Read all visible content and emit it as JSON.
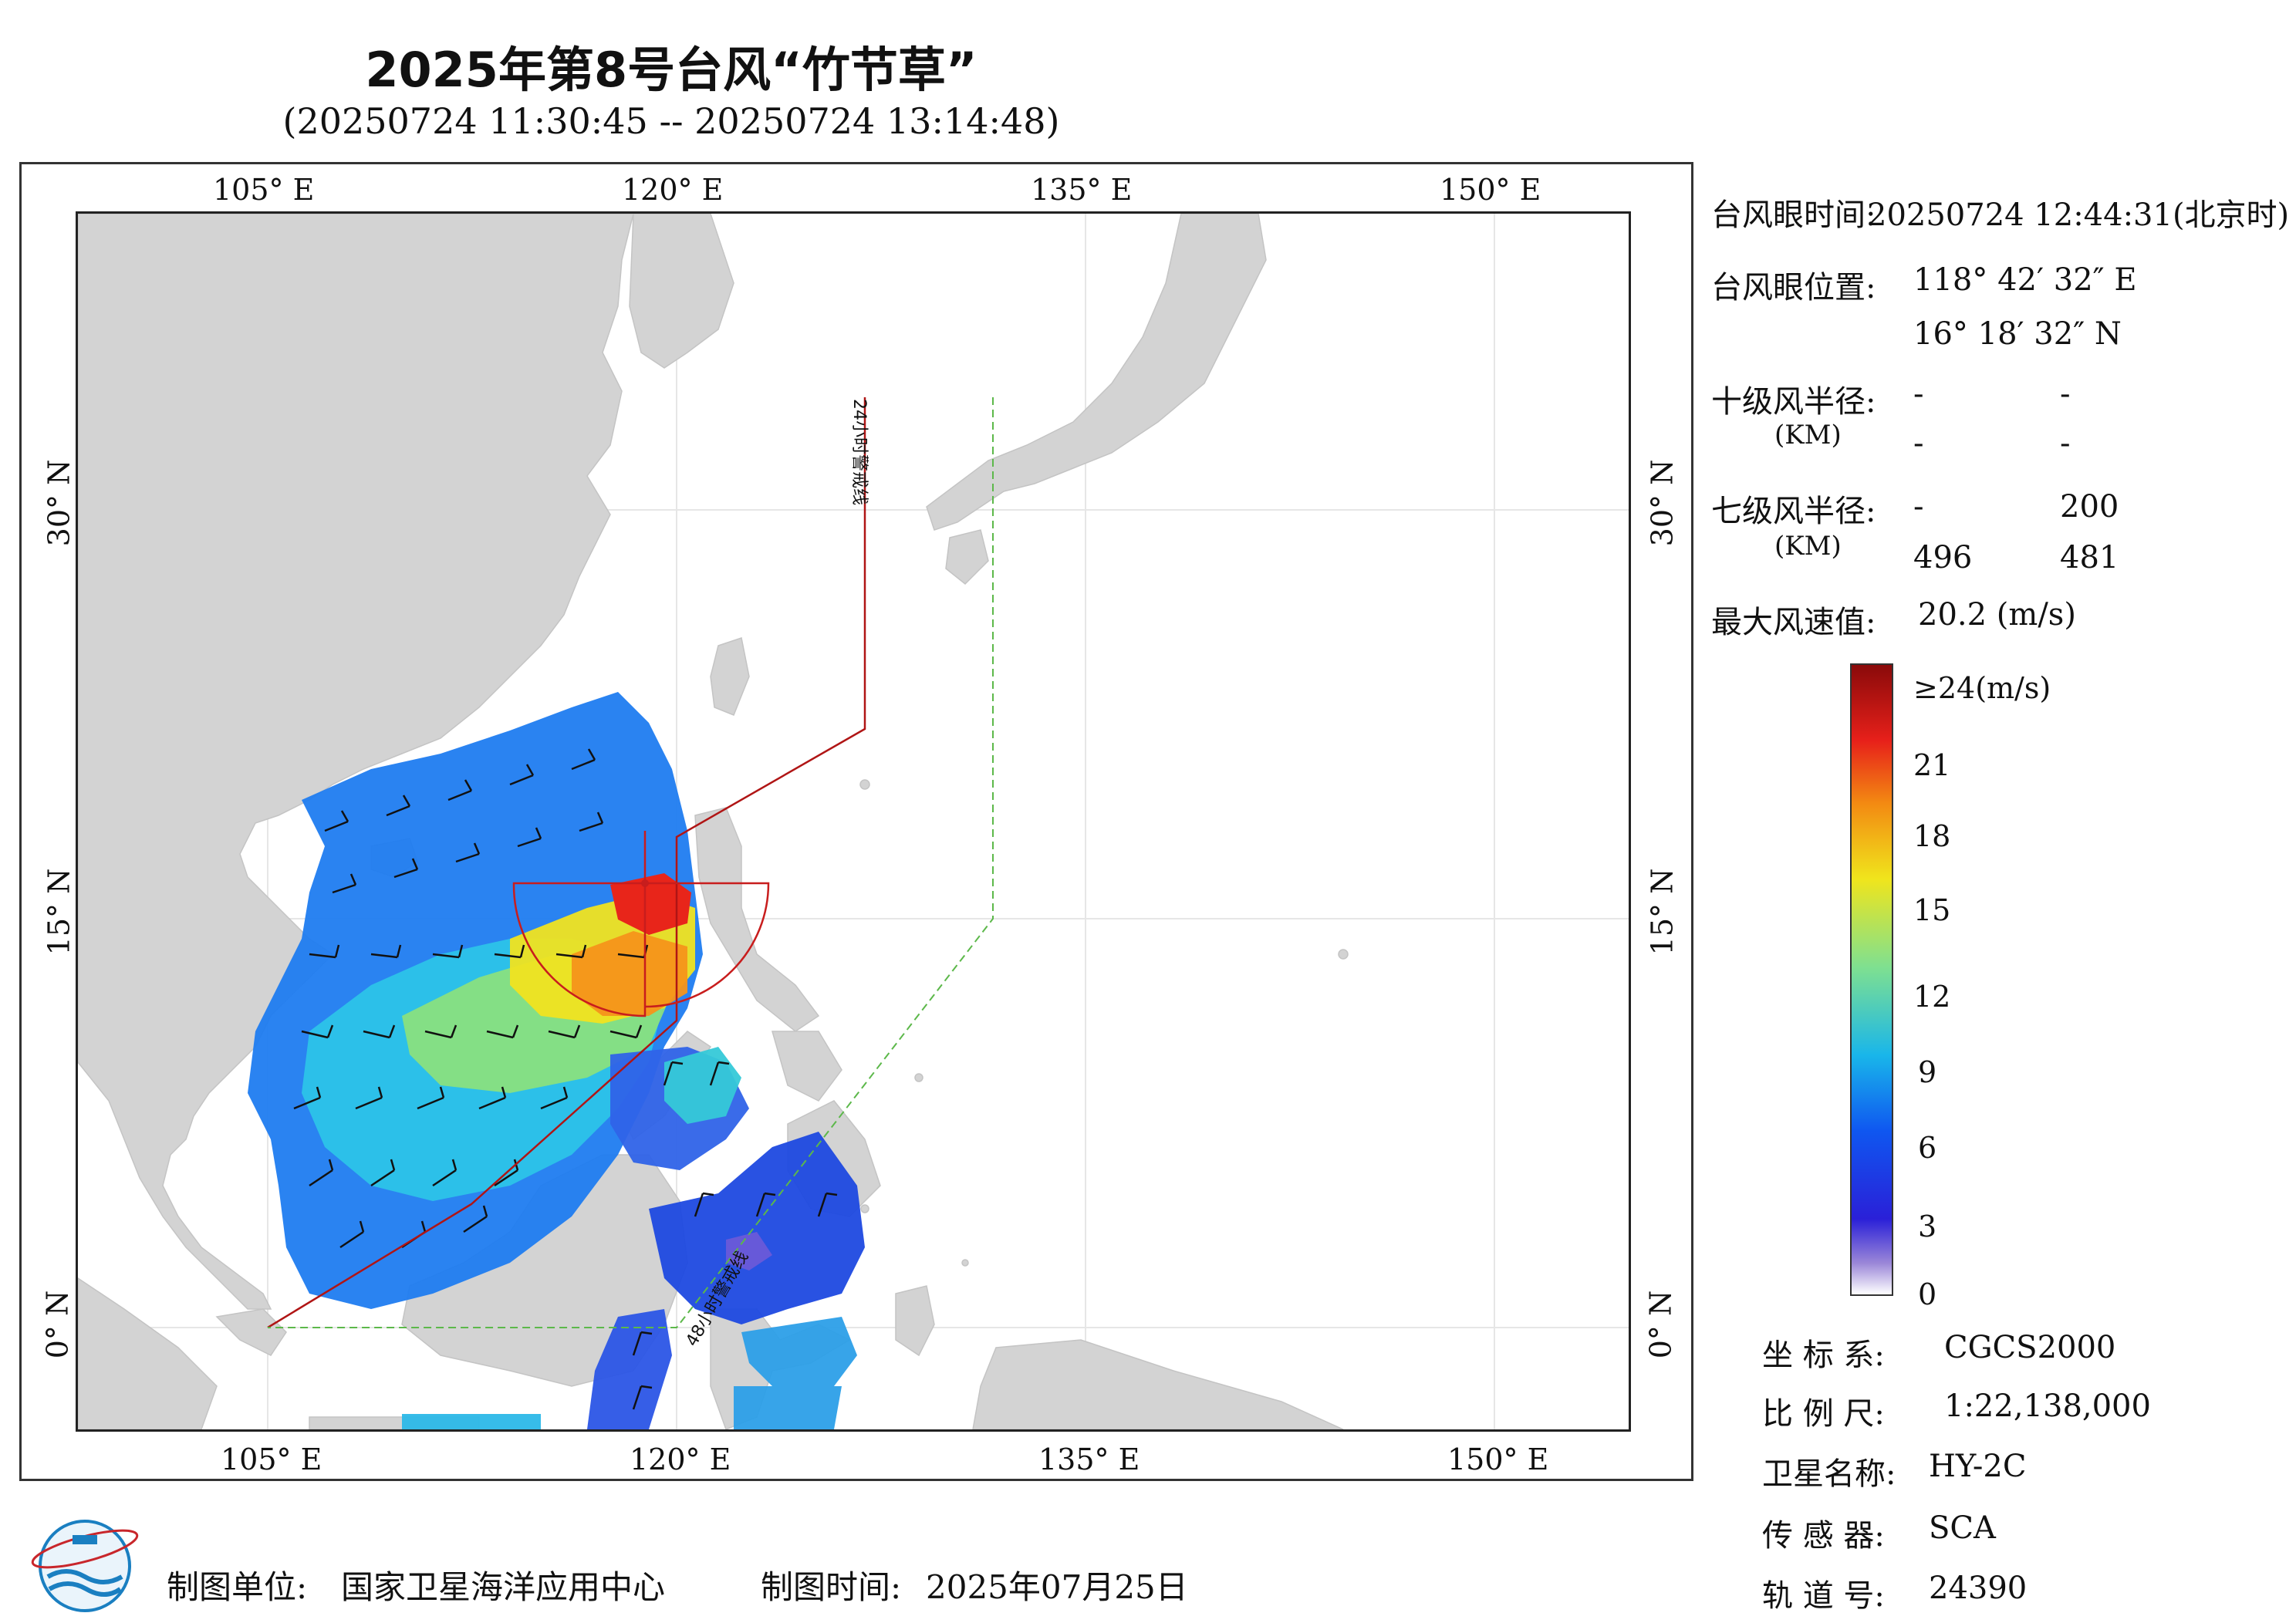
{
  "title": "2025年第8号台风“竹节草”",
  "subtitle": "(20250724 11:30:45 -- 20250724 13:14:48)",
  "axes": {
    "lon_ticks": [
      "105° E",
      "120° E",
      "135° E",
      "150° E"
    ],
    "lat_ticks": [
      "30° N",
      "15° N",
      "0° N"
    ],
    "warning_24h": "24小时警戒线",
    "warning_48h": "48小时警戒线"
  },
  "info": {
    "eye_time_label": "台风眼时间:",
    "eye_time_value": "20250724 12:44:31(北京时)",
    "eye_pos_label": "台风眼位置:",
    "eye_lon": "118° 42′ 32″ E",
    "eye_lat": "16° 18′ 32″ N",
    "r10_label": "十级风半径:",
    "r10_unit": "(KM)",
    "r10_values": [
      "-",
      "-",
      "-",
      "-"
    ],
    "r7_label": "七级风半径:",
    "r7_unit": "(KM)",
    "r7_values": [
      "-",
      "200",
      "496",
      "481"
    ],
    "max_wind_label": "最大风速值:",
    "max_wind_value": "20.2 (m/s)"
  },
  "colorbar": {
    "top_label": "≥24(m/s)",
    "labels": [
      "21",
      "18",
      "15",
      "12",
      "9",
      "6",
      "3",
      "0"
    ],
    "colors": [
      "#ffffff",
      "#9a86d8",
      "#2a20d8",
      "#0f57f0",
      "#19b6ea",
      "#7fe090",
      "#f0e51c",
      "#f38a12",
      "#e7201a",
      "#8a0a0a"
    ]
  },
  "meta": {
    "crs_label": "坐 标 系:",
    "crs_value": "CGCS2000",
    "scale_label": "比 例 尺:",
    "scale_value": "1:22,138,000",
    "sat_label": "卫星名称:",
    "sat_value": "HY-2C",
    "sensor_label": "传 感 器:",
    "sensor_value": "SCA",
    "orbit_label": "轨 道 号:",
    "orbit_value": "24390"
  },
  "footer": {
    "maker_label": "制图单位:",
    "maker_value": "国家卫星海洋应用中心",
    "date_label": "制图时间:",
    "date_value": "2025年07月25日"
  }
}
